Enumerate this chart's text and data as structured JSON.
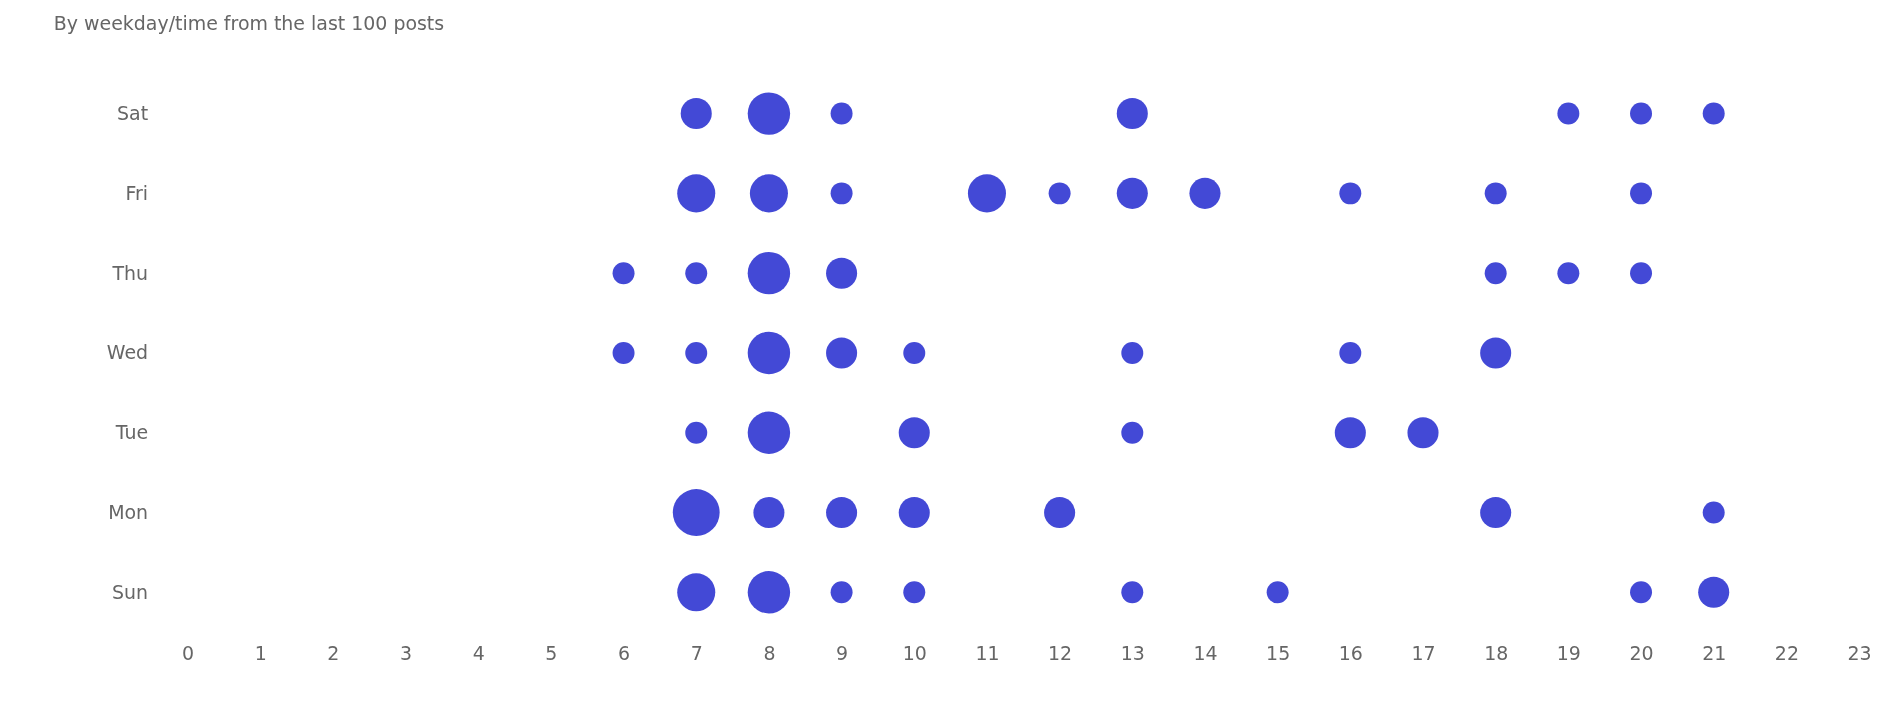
{
  "chart_data": {
    "type": "bubble",
    "title": "By weekday/time from the last 100 posts",
    "orientation": "horizontal",
    "categories": [
      "Sat",
      "Fri",
      "Thu",
      "Wed",
      "Tue",
      "Mon",
      "Sun"
    ],
    "xlim": [
      0,
      23
    ],
    "xticks": [
      0,
      1,
      2,
      3,
      4,
      5,
      6,
      7,
      8,
      9,
      10,
      11,
      12,
      13,
      14,
      15,
      16,
      17,
      18,
      19,
      20,
      21,
      22,
      23
    ],
    "grid": false,
    "legend": false,
    "series": [
      {
        "color": "#4349d6",
        "x": [
          "Sat",
          "Sat",
          "Sat",
          "Sat",
          "Sat",
          "Sat",
          "Sat",
          "Fri",
          "Fri",
          "Fri",
          "Fri",
          "Fri",
          "Fri",
          "Fri",
          "Fri",
          "Fri",
          "Fri",
          "Thu",
          "Thu",
          "Thu",
          "Thu",
          "Thu",
          "Thu",
          "Thu",
          "Wed",
          "Wed",
          "Wed",
          "Wed",
          "Wed",
          "Wed",
          "Wed",
          "Wed",
          "Tue",
          "Tue",
          "Tue",
          "Tue",
          "Tue",
          "Tue",
          "Mon",
          "Mon",
          "Mon",
          "Mon",
          "Mon",
          "Mon",
          "Mon",
          "Sun",
          "Sun",
          "Sun",
          "Sun",
          "Sun",
          "Sun",
          "Sun",
          "Sun"
        ],
        "values": [
          7,
          8,
          9,
          13,
          19,
          20,
          21,
          7,
          8,
          9,
          11,
          12,
          13,
          14,
          16,
          18,
          20,
          6,
          7,
          8,
          9,
          18,
          19,
          20,
          6,
          7,
          8,
          9,
          10,
          13,
          16,
          18,
          7,
          8,
          10,
          13,
          16,
          17,
          7,
          8,
          9,
          10,
          12,
          18,
          21,
          7,
          8,
          9,
          10,
          13,
          15,
          20,
          21
        ],
        "sizes": [
          0.44,
          0.82,
          0.22,
          0.44,
          0.22,
          0.22,
          0.22,
          0.66,
          0.66,
          0.22,
          0.66,
          0.22,
          0.44,
          0.44,
          0.22,
          0.22,
          0.22,
          0.22,
          0.22,
          0.82,
          0.44,
          0.22,
          0.22,
          0.22,
          0.22,
          0.22,
          0.82,
          0.44,
          0.22,
          0.22,
          0.22,
          0.44,
          0.22,
          0.82,
          0.44,
          0.22,
          0.44,
          0.44,
          1,
          0.44,
          0.44,
          0.44,
          0.44,
          0.44,
          0.22,
          0.66,
          0.82,
          0.22,
          0.22,
          0.22,
          0.22,
          0.22,
          0.44
        ]
      }
    ]
  }
}
